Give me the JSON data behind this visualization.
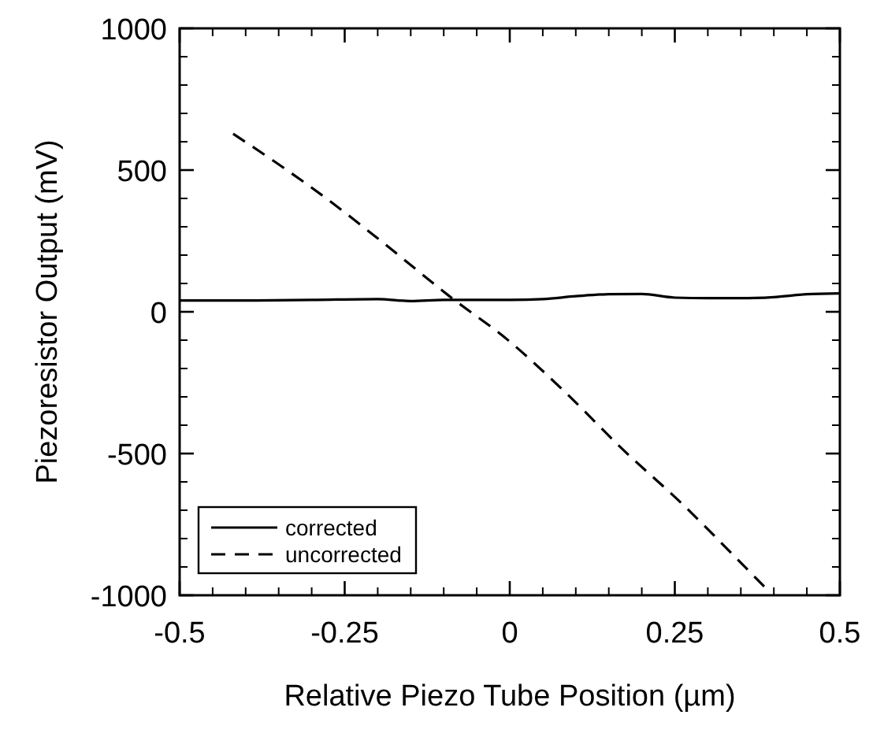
{
  "chart_data": {
    "type": "line",
    "xlabel": "Relative Piezo Tube Position (µm)",
    "ylabel": "Piezoresistor Output (mV)",
    "xlim": [
      -0.5,
      0.5
    ],
    "ylim": [
      -1000,
      1000
    ],
    "xticks": [
      -0.5,
      -0.25,
      0,
      0.25,
      0.5
    ],
    "yticks": [
      -1000,
      -500,
      0,
      500,
      1000
    ],
    "grid": false,
    "legend": "bottom left",
    "series": [
      {
        "name": "corrected",
        "color": "#000000",
        "line_style": "solid",
        "x": [
          -0.5,
          -0.4,
          -0.3,
          -0.2,
          -0.15,
          -0.1,
          0,
          0.05,
          0.1,
          0.15,
          0.2,
          0.25,
          0.3,
          0.35,
          0.4,
          0.45,
          0.5
        ],
        "values": [
          40,
          40,
          42,
          45,
          38,
          42,
          42,
          45,
          55,
          62,
          63,
          50,
          48,
          48,
          52,
          62,
          65
        ]
      },
      {
        "name": "uncorrected",
        "color": "#000000",
        "line_style": "dashed",
        "x": [
          -0.419,
          -0.35,
          -0.279,
          -0.194,
          -0.093,
          0,
          0.085,
          0.171,
          0.264,
          0.349,
          0.395
        ],
        "values": [
          628,
          520,
          402,
          248,
          58,
          -105,
          -286,
          -485,
          -684,
          -883,
          -992
        ]
      }
    ]
  }
}
